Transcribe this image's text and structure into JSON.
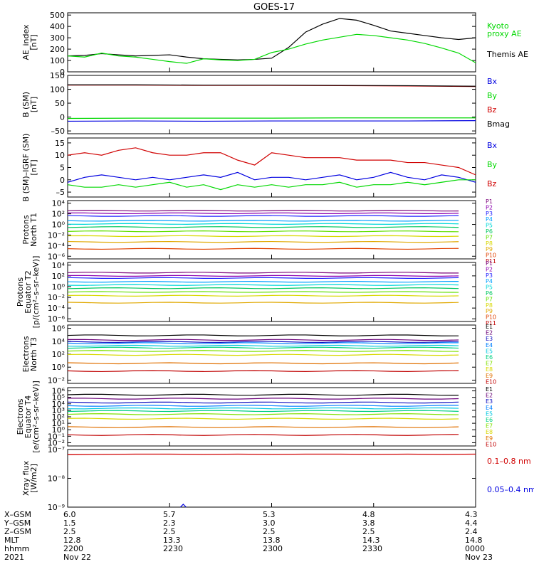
{
  "title": "GOES-17",
  "colors": {
    "black": "#000000",
    "green": "#00d800",
    "blue": "#0000e0",
    "red": "#d00000",
    "p": [
      "#7a0078",
      "#8c00b0",
      "#2020ff",
      "#00a0ff",
      "#00d8d8",
      "#00c860",
      "#60e000",
      "#d8d800",
      "#e0a800",
      "#e04000",
      "#c00000"
    ],
    "e": [
      "#000000",
      "#6a0078",
      "#1010c0",
      "#0080ff",
      "#00c8e0",
      "#00d080",
      "#80e000",
      "#d8d800",
      "#e07000",
      "#c00000"
    ]
  },
  "legends": {
    "ae": [
      "Kyoto",
      "proxy AE",
      "Themis AE"
    ],
    "b": [
      "Bx",
      "By",
      "Bz",
      "Bmag"
    ],
    "db": [
      "Bx",
      "By",
      "Bz"
    ],
    "p": [
      "P1",
      "P2",
      "P3",
      "P4",
      "P5",
      "P6",
      "P7",
      "P8",
      "P9",
      "P10",
      "P11"
    ],
    "e": [
      "E1",
      "E2",
      "E3",
      "E4",
      "E5",
      "E6",
      "E7",
      "E8",
      "E9",
      "E10"
    ],
    "xray": [
      "0.1–0.8 nm",
      "0.05–0.4 nm"
    ]
  },
  "ylabels": {
    "ae": [
      "AE_index",
      "[nT]"
    ],
    "b": [
      "B (SM)",
      "[nT]"
    ],
    "db": [
      "B (SM)–IGRF (SM)",
      "[nT]"
    ],
    "p1": [
      "Protons",
      "North T1"
    ],
    "p2": [
      "Protons",
      "Equator T2",
      "[p/(cm²–s–sr–keV)]"
    ],
    "e3": [
      "Electrons",
      "North T3"
    ],
    "e4": [
      "Electrons",
      "Equator T4",
      "[e/(cm²–s–sr–keV)]"
    ],
    "x": [
      "Xray flux",
      "[W/m2]"
    ]
  },
  "ticks": {
    "ae": [
      "0",
      "100",
      "200",
      "300",
      "400",
      "500"
    ],
    "b": [
      "–50",
      "0",
      "50",
      "100",
      "150"
    ],
    "db": [
      "–5",
      "0",
      "5",
      "10",
      "15"
    ],
    "p1": [
      "10⁻⁶",
      "10⁻⁴",
      "10⁻²",
      "10⁰",
      "10²",
      "10⁴"
    ],
    "p2": [
      "10⁻⁶",
      "10⁻⁴",
      "10⁻²",
      "10⁰",
      "10²",
      "10⁴"
    ],
    "e3": [
      "10⁻²",
      "10⁰",
      "10²",
      "10⁴",
      "10⁶"
    ],
    "e4": [
      "10⁻²",
      "10⁻¹",
      "10⁰",
      "10¹",
      "10²",
      "10³",
      "10⁴",
      "10⁵",
      "10⁶"
    ],
    "x": [
      "10⁻⁹",
      "10⁻⁸",
      "10⁻⁷"
    ]
  },
  "xaxis": {
    "row_labels": [
      "X–GSM",
      "Y–GSM",
      "Z–GSM",
      "MLT",
      "hhmm",
      "2021"
    ],
    "columns": [
      [
        "6.0",
        "1.5",
        "2.5",
        "12.8",
        "2200",
        "Nov 22"
      ],
      [
        "5.7",
        "2.3",
        "2.5",
        "13.3",
        "2230",
        ""
      ],
      [
        "5.3",
        "3.0",
        "2.5",
        "13.8",
        "2300",
        ""
      ],
      [
        "4.8",
        "3.8",
        "2.5",
        "14.3",
        "2330",
        ""
      ],
      [
        "4.3",
        "4.4",
        "2.4",
        "14.8",
        "0000",
        "Nov 23"
      ]
    ]
  },
  "chart_data": [
    {
      "type": "line",
      "ylabel": "AE_index [nT]",
      "ylim": [
        0,
        520
      ],
      "x_minutes": [
        0,
        5,
        10,
        15,
        20,
        25,
        30,
        35,
        40,
        45,
        50,
        55,
        60,
        65,
        70,
        75,
        80,
        85,
        90,
        95,
        100,
        105,
        110,
        115,
        120
      ],
      "series": [
        {
          "name": "Themis AE",
          "color": "black",
          "values": [
            140,
            145,
            160,
            150,
            140,
            145,
            150,
            130,
            115,
            110,
            105,
            110,
            120,
            215,
            350,
            420,
            470,
            455,
            410,
            360,
            340,
            320,
            300,
            285,
            300
          ]
        },
        {
          "name": "Kyoto proxy AE",
          "color": "green",
          "values": [
            140,
            130,
            165,
            140,
            130,
            110,
            90,
            75,
            115,
            105,
            100,
            110,
            170,
            200,
            245,
            280,
            305,
            330,
            320,
            300,
            280,
            250,
            210,
            165,
            80
          ]
        }
      ]
    },
    {
      "type": "line",
      "ylabel": "B (SM) [nT]",
      "ylim": [
        -60,
        150
      ],
      "x_minutes": [
        0,
        20,
        40,
        60,
        80,
        100,
        120
      ],
      "series": [
        {
          "name": "Bx",
          "color": "blue",
          "values": [
            -15,
            -14,
            -15,
            -14,
            -14,
            -14,
            -13
          ]
        },
        {
          "name": "By",
          "color": "green",
          "values": [
            -5,
            -4,
            -4,
            -4,
            -3,
            -3,
            -3
          ]
        },
        {
          "name": "Bz",
          "color": "red",
          "values": [
            115,
            115,
            114,
            114,
            113,
            112,
            110
          ]
        },
        {
          "name": "Bmag",
          "color": "black",
          "values": [
            116,
            116,
            115,
            115,
            114,
            113,
            111
          ]
        }
      ]
    },
    {
      "type": "line",
      "ylabel": "B (SM)–IGRF (SM) [nT]",
      "ylim": [
        -7,
        17
      ],
      "x_minutes": [
        0,
        5,
        10,
        15,
        20,
        25,
        30,
        35,
        40,
        45,
        50,
        55,
        60,
        65,
        70,
        75,
        80,
        85,
        90,
        95,
        100,
        105,
        110,
        115,
        120
      ],
      "series": [
        {
          "name": "Bx",
          "color": "blue",
          "values": [
            -1,
            1,
            2,
            1,
            0,
            1,
            0,
            1,
            2,
            1,
            3,
            0,
            1,
            1,
            0,
            1,
            2,
            0,
            1,
            3,
            1,
            0,
            2,
            1,
            -1
          ]
        },
        {
          "name": "By",
          "color": "green",
          "values": [
            -2,
            -3,
            -3,
            -2,
            -3,
            -2,
            -1,
            -3,
            -2,
            -4,
            -2,
            -3,
            -2,
            -3,
            -2,
            -2,
            -1,
            -3,
            -2,
            -2,
            -1,
            -2,
            -1,
            0,
            0
          ]
        },
        {
          "name": "Bz",
          "color": "red",
          "values": [
            10,
            11,
            10,
            12,
            13,
            11,
            10,
            10,
            11,
            11,
            8,
            6,
            11,
            10,
            9,
            9,
            9,
            8,
            8,
            8,
            7,
            7,
            6,
            5,
            2
          ]
        }
      ]
    },
    {
      "type": "line",
      "ylabel": "Protons North T1",
      "yscale": "log",
      "ylim_exp": [
        -6.5,
        4.5
      ],
      "series_names": [
        "P1",
        "P2",
        "P3",
        "P4",
        "P5",
        "P6",
        "P7",
        "P8",
        "P9",
        "P10",
        "P11"
      ],
      "levels_exp": [
        2.6,
        2.1,
        1.6,
        0.7,
        0.1,
        -0.5,
        -1.3,
        -2.2,
        -3.3,
        -4.6,
        null
      ]
    },
    {
      "type": "line",
      "ylabel": "Protons Equator T2 [p/(cm²–s–sr–keV)]",
      "yscale": "log",
      "ylim_exp": [
        -6.5,
        4.5
      ],
      "series_names": [
        "P1",
        "P2",
        "P3",
        "P4",
        "P5",
        "P6",
        "P7",
        "P8",
        "P9",
        "P10",
        "P11"
      ],
      "levels_exp": [
        2.6,
        2.0,
        1.6,
        0.9,
        0.3,
        -0.3,
        -1.0,
        -1.7,
        -3.0,
        null,
        null
      ]
    },
    {
      "type": "line",
      "ylabel": "Electrons North T3",
      "yscale": "log",
      "ylim_exp": [
        -2.5,
        6.5
      ],
      "series_names": [
        "E1",
        "E2",
        "E3",
        "E4",
        "E5",
        "E6",
        "E7",
        "E8",
        "E9",
        "E10"
      ],
      "levels_exp": [
        4.9,
        4.2,
        3.9,
        3.7,
        3.3,
        3.0,
        2.5,
        1.9,
        0.6,
        -0.6
      ]
    },
    {
      "type": "line",
      "ylabel": "Electrons Equator T4 [e/(cm²–s–sr–keV)]",
      "yscale": "log",
      "ylim_exp": [
        -2.5,
        6.5
      ],
      "series_names": [
        "E1",
        "E2",
        "E3",
        "E4",
        "E5",
        "E6",
        "E7",
        "E8",
        "E9",
        "E10"
      ],
      "levels_exp": [
        5.4,
        4.8,
        4.2,
        3.7,
        3.3,
        2.9,
        2.4,
        1.7,
        0.4,
        -0.8
      ]
    },
    {
      "type": "line",
      "ylabel": "Xray flux [W/m2]",
      "yscale": "log",
      "ylim_exp": [
        -9,
        -7
      ],
      "x_minutes": [
        0,
        10,
        20,
        30,
        40,
        50,
        60,
        70,
        80,
        90,
        100,
        110,
        120
      ],
      "series": [
        {
          "name": "0.1–0.8 nm",
          "color": "red",
          "values_exp": [
            -7.18,
            -7.17,
            -7.16,
            -7.16,
            -7.17,
            -7.16,
            -7.17,
            -7.16,
            -7.16,
            -7.17,
            -7.16,
            -7.17,
            -7.16
          ]
        },
        {
          "name": "0.05–0.4 nm",
          "color": "blue",
          "spike_minute": 34,
          "spike_exp": -8.9
        }
      ]
    }
  ]
}
